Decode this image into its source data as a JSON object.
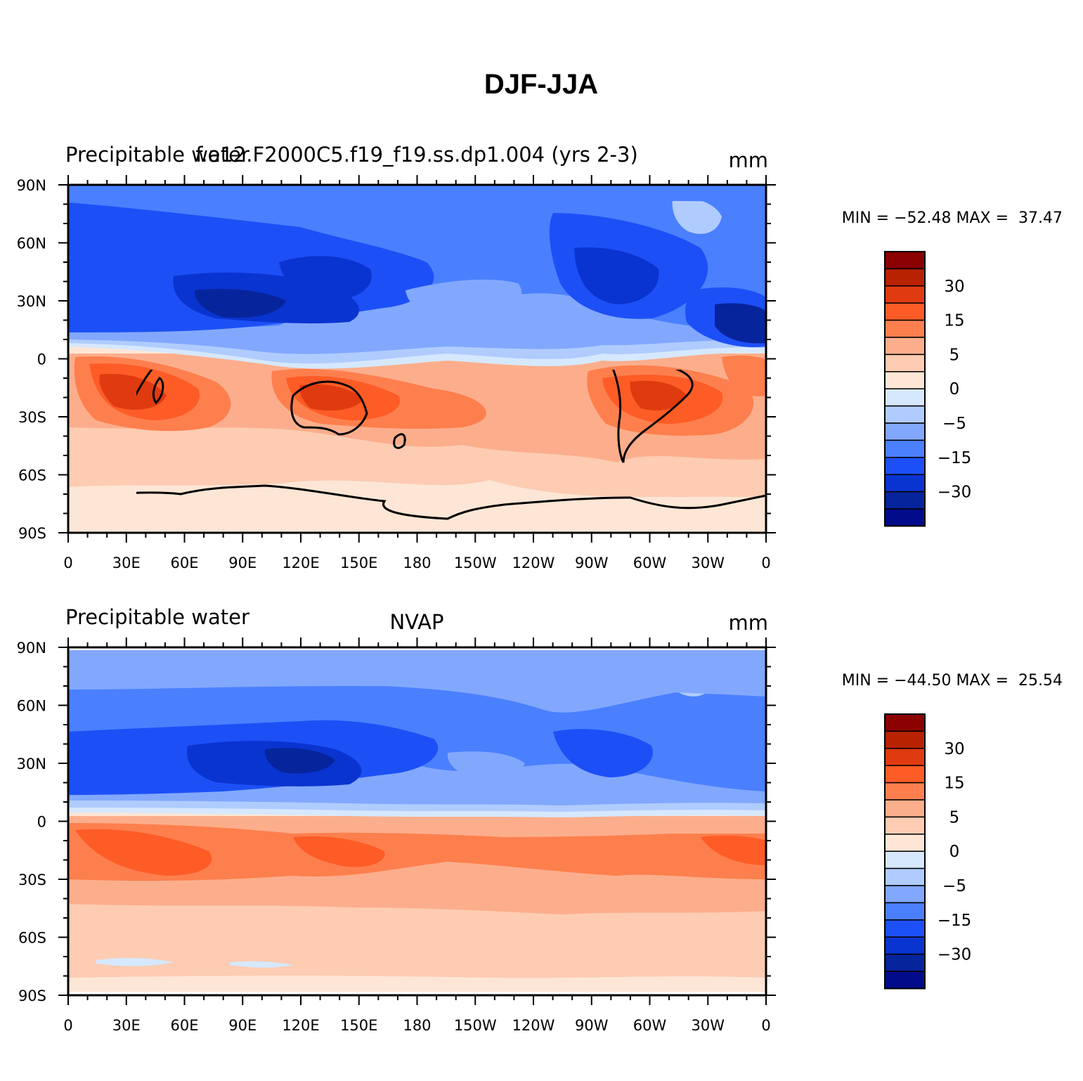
{
  "figure": {
    "title": "DJF-JJA"
  },
  "panels": [
    {
      "left_label": "Precipitable water",
      "center_label": "f.e12.F2000C5.f19_f19.ss.dp1.004 (yrs 2-3)",
      "units": "mm",
      "min_label": "MIN =",
      "min_value": "−52.48",
      "max_label": "MAX =",
      "max_value": "37.47",
      "stats_text": "MIN = −52.48 MAX =  37.47"
    },
    {
      "left_label": "Precipitable water",
      "center_label": "NVAP",
      "units": "mm",
      "min_label": "MIN =",
      "min_value": "−44.50",
      "max_label": "MAX =",
      "max_value": "25.54",
      "stats_text": "MIN = −44.50 MAX =  25.54"
    }
  ],
  "map_axes": {
    "lat_ticks": [
      "90N",
      "60N",
      "30N",
      "0",
      "30S",
      "60S",
      "90S"
    ],
    "lon_ticks": [
      "0",
      "30E",
      "60E",
      "90E",
      "120E",
      "150E",
      "180",
      "150W",
      "120W",
      "90W",
      "60W",
      "30W",
      "0"
    ]
  },
  "colorbar": {
    "labels": [
      "30",
      "15",
      "5",
      "0",
      "−5",
      "−15",
      "−30"
    ],
    "colors_top_to_bottom": [
      "#8b0000",
      "#b82200",
      "#e03a10",
      "#fe5c26",
      "#fe7f4e",
      "#fcae8c",
      "#fdccb2",
      "#fee6d6",
      "#d6e8fe",
      "#b0ccfe",
      "#82a8fe",
      "#4a80fe",
      "#1c50f6",
      "#0a34d0",
      "#06249c",
      "#020b8a"
    ]
  },
  "palette": {
    "deep_red": "#8b0000",
    "dark_red": "#b82200",
    "red": "#e03a10",
    "orange_red": "#fe5c26",
    "orange": "#fe7f4e",
    "salmon": "#fcae8c",
    "light_salmon": "#fdccb2",
    "cream": "#fee6d6",
    "pale_blue": "#d6e8fe",
    "light_blue": "#b0ccfe",
    "sky_blue": "#82a8fe",
    "blue": "#4a80fe",
    "strong_blue": "#1c50f6",
    "deep_blue": "#0a34d0",
    "navy": "#06249c",
    "darkest_navy": "#020b8a"
  }
}
